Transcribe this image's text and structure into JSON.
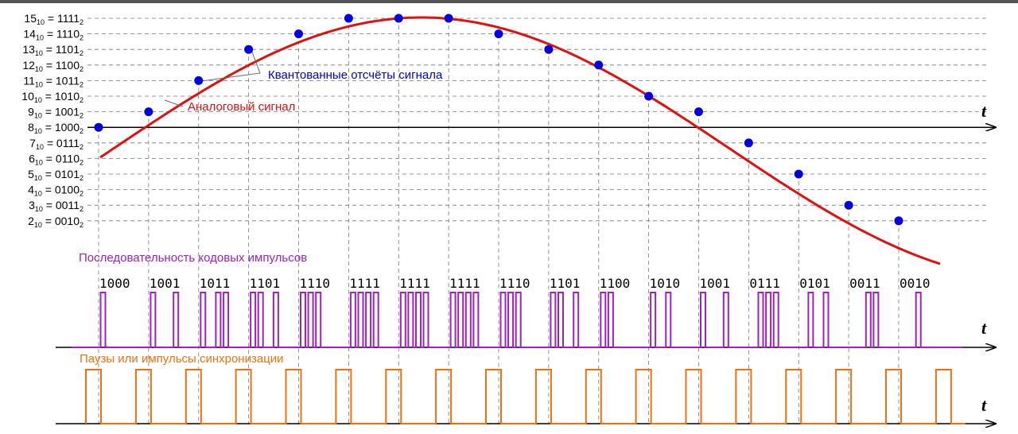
{
  "colors": {
    "analog": "#e01010",
    "samples": "#0000dd",
    "code_pulses": "#a020c0",
    "sync_pulses": "#f07010",
    "axis": "#000000",
    "grid": "#777777"
  },
  "labels": {
    "samples_label": "Квантованные отсчёты сигнала",
    "analog_label": "Аналоговый сигнал",
    "code_sequence_label": "Последовательность кодовых импульсов",
    "sync_label": "Паузы или импульсы синхронизации",
    "time_axis": "t"
  },
  "levels": [
    {
      "dec": "15",
      "base_dec": "10",
      "bin": "1111",
      "base_bin": "2"
    },
    {
      "dec": "14",
      "base_dec": "10",
      "bin": "1110",
      "base_bin": "2"
    },
    {
      "dec": "13",
      "base_dec": "10",
      "bin": "1101",
      "base_bin": "2"
    },
    {
      "dec": "12",
      "base_dec": "10",
      "bin": "1100",
      "base_bin": "2"
    },
    {
      "dec": "11",
      "base_dec": "10",
      "bin": "1011",
      "base_bin": "2"
    },
    {
      "dec": "10",
      "base_dec": "10",
      "bin": "1010",
      "base_bin": "2"
    },
    {
      "dec": "9",
      "base_dec": "10",
      "bin": "1001",
      "base_bin": "2"
    },
    {
      "dec": "8",
      "base_dec": "10",
      "bin": "1000",
      "base_bin": "2"
    },
    {
      "dec": "7",
      "base_dec": "10",
      "bin": "0111",
      "base_bin": "2"
    },
    {
      "dec": "6",
      "base_dec": "10",
      "bin": "0110",
      "base_bin": "2"
    },
    {
      "dec": "5",
      "base_dec": "10",
      "bin": "0101",
      "base_bin": "2"
    },
    {
      "dec": "4",
      "base_dec": "10",
      "bin": "0100",
      "base_bin": "2"
    },
    {
      "dec": "3",
      "base_dec": "10",
      "bin": "0011",
      "base_bin": "2"
    },
    {
      "dec": "2",
      "base_dec": "10",
      "bin": "0010",
      "base_bin": "2"
    }
  ],
  "samples": [
    8,
    9,
    11,
    13,
    14,
    15,
    15,
    15,
    14,
    13,
    12,
    10,
    9,
    7,
    5,
    3,
    2
  ],
  "codes": [
    "1000",
    "1001",
    "1011",
    "1101",
    "1110",
    "1111",
    "1111",
    "1111",
    "1110",
    "1101",
    "1100",
    "1010",
    "1001",
    "0111",
    "0101",
    "0011",
    "0010"
  ]
}
